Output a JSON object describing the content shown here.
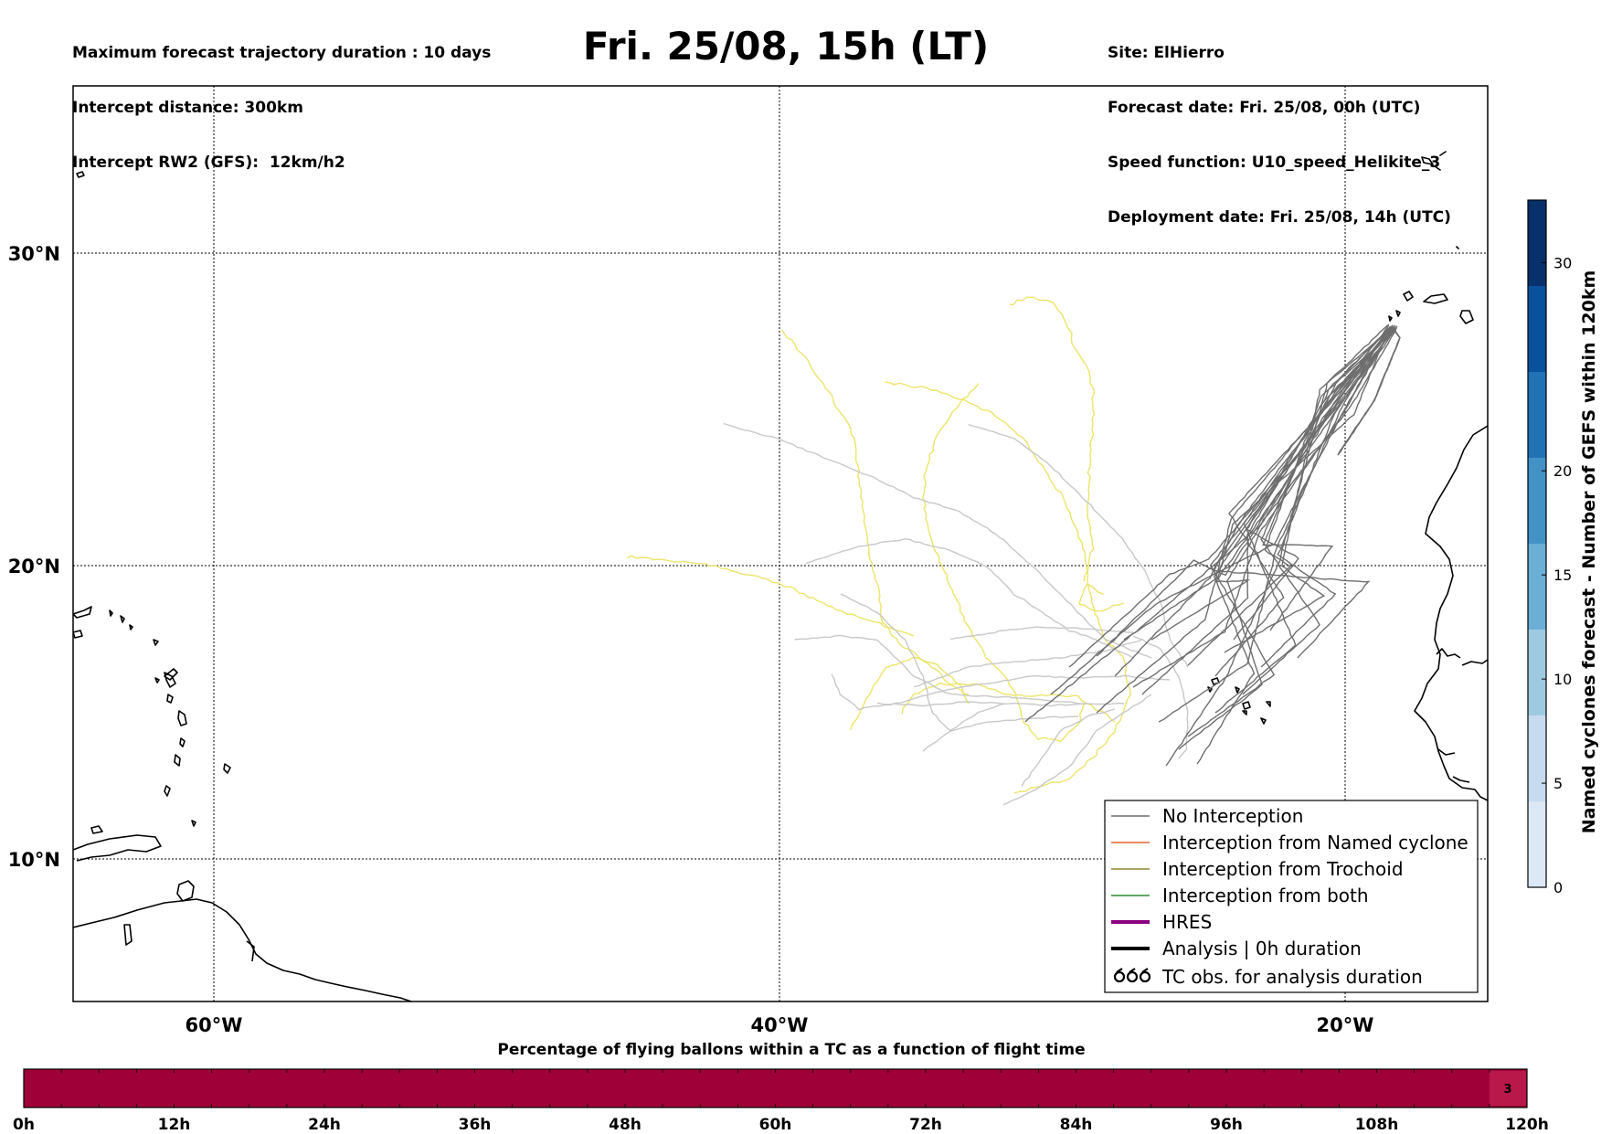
{
  "header": {
    "left_lines": [
      "Maximum forecast trajectory duration : 10 days",
      "Intercept distance: 300km",
      "Intercept RW2 (GFS):  12km/h2"
    ],
    "title": "Fri. 25/08, 15h (LT)",
    "right_lines": [
      "Site: ElHierro",
      "Forecast date: Fri. 25/08, 00h (UTC)",
      "Speed function: U10_speed_Helikite_3",
      "Deployment date: Fri. 25/08, 14h (UTC)"
    ]
  },
  "map": {
    "lon_range": [
      -65,
      -15
    ],
    "lat_range": [
      5,
      35
    ],
    "lat_labels": [
      {
        "lat": 30,
        "text": "30°N"
      },
      {
        "lat": 20,
        "text": "20°N"
      },
      {
        "lat": 10,
        "text": "10°N"
      }
    ],
    "lon_labels": [
      {
        "lon": -60,
        "text": "60°W"
      },
      {
        "lon": -40,
        "text": "40°W"
      },
      {
        "lon": -20,
        "text": "20°W"
      }
    ],
    "colors": {
      "no_interception": "#6e6e6e",
      "light_trajectory": "#c8c8c8",
      "yellow_trajectory": "#ece46a",
      "named_cyclone": "#e8622a",
      "trochoid": "#8a8a2a",
      "both": "#2e8b2e",
      "hres": "#8b007f",
      "analysis": "#000000"
    }
  },
  "legend": {
    "items": [
      {
        "label": "No Interception",
        "style": "thin-gray"
      },
      {
        "label": "Interception from Named cyclone",
        "style": "thin-orange"
      },
      {
        "label": "Interception from Trochoid",
        "style": "thin-olive"
      },
      {
        "label": "Interception from both",
        "style": "thin-green"
      },
      {
        "label": "HRES",
        "style": "thick-purple"
      },
      {
        "label": "Analysis | 0h duration",
        "style": "thick-black"
      },
      {
        "label": "TC obs. for analysis duration",
        "style": "cyclone-symbols"
      }
    ]
  },
  "colorbar": {
    "title": "Named cyclones forecast - Number of GEFS within 120km",
    "ticks": [
      0,
      5,
      10,
      15,
      20,
      30
    ],
    "max": 33,
    "colors": [
      "#dce8f5",
      "#c6dbef",
      "#9ecae1",
      "#6baed6",
      "#4292c6",
      "#2171b5",
      "#08519c",
      "#08306b"
    ]
  },
  "time_bar": {
    "title": "Percentage of flying ballons within a TC as a function of flight time",
    "ticks": [
      "0h",
      "12h",
      "24h",
      "36h",
      "48h",
      "60h",
      "72h",
      "84h",
      "96h",
      "108h",
      "120h"
    ],
    "fill_color": "#a00038",
    "end_cell_color": "#b8184a",
    "end_cell_label": "3"
  }
}
